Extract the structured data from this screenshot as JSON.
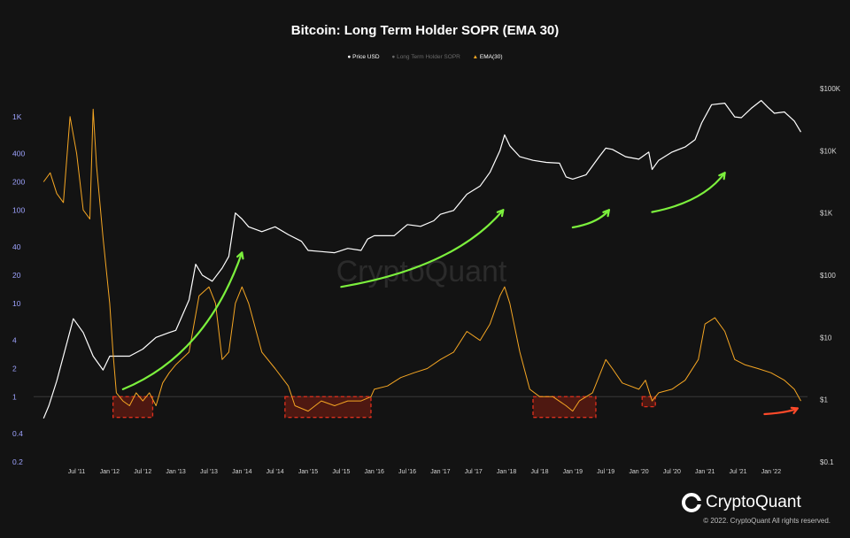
{
  "title": "Bitcoin: Long Term Holder SOPR (EMA 30)",
  "legend": [
    {
      "label": "Price USD",
      "color": "#ffffff",
      "marker": "dot"
    },
    {
      "label": "Long Term Holder SOPR",
      "color": "#6a6a6a",
      "marker": "dot"
    },
    {
      "label": "EMA(30)",
      "color": "#f5a623",
      "marker": "triangle"
    }
  ],
  "watermark": "CryptoQuant",
  "brand": "CryptoQuant",
  "copyright": "© 2022. CryptoQuant All rights reserved.",
  "chart_data": {
    "type": "line",
    "x_tick_labels": [
      "Jul '11",
      "Jan '12",
      "Jul '12",
      "Jan '13",
      "Jul '13",
      "Jan '14",
      "Jul '14",
      "Jan '15",
      "Jul '15",
      "Jan '16",
      "Jul '16",
      "Jan '17",
      "Jul '17",
      "Jan '18",
      "Jul '18",
      "Jan '19",
      "Jul '19",
      "Jan '20",
      "Jul '20",
      "Jan '21",
      "Jul '21",
      "Jan '22"
    ],
    "y_left": {
      "scale": "log",
      "range": [
        0.2,
        2000
      ],
      "tick_labels": [
        "1K",
        "400",
        "200",
        "100",
        "40",
        "20",
        "10",
        "4",
        "2",
        "1",
        "0.4",
        "0.2"
      ],
      "tick_values": [
        1000,
        400,
        200,
        100,
        40,
        20,
        10,
        4,
        2,
        1,
        0.4,
        0.2
      ]
    },
    "y_right": {
      "scale": "log",
      "range": [
        0.1,
        100000
      ],
      "tick_labels": [
        "$100K",
        "$10K",
        "$1K",
        "$100",
        "$10",
        "$1",
        "$0.1"
      ],
      "tick_values": [
        100000,
        10000,
        1000,
        100,
        10,
        1,
        0.1
      ]
    },
    "reference_line": {
      "axis": "left",
      "value": 1
    },
    "series": [
      {
        "name": "Price USD",
        "axis": "right",
        "color": "#ffffff",
        "points": [
          [
            2011.0,
            0.5
          ],
          [
            2011.08,
            0.8
          ],
          [
            2011.2,
            2
          ],
          [
            2011.35,
            8
          ],
          [
            2011.45,
            20
          ],
          [
            2011.6,
            12
          ],
          [
            2011.75,
            5
          ],
          [
            2011.9,
            3
          ],
          [
            2012.0,
            5
          ],
          [
            2012.3,
            5
          ],
          [
            2012.5,
            6.5
          ],
          [
            2012.7,
            10
          ],
          [
            2012.9,
            12
          ],
          [
            2013.0,
            13
          ],
          [
            2013.2,
            40
          ],
          [
            2013.3,
            150
          ],
          [
            2013.4,
            100
          ],
          [
            2013.55,
            80
          ],
          [
            2013.7,
            130
          ],
          [
            2013.8,
            200
          ],
          [
            2013.9,
            1000
          ],
          [
            2014.0,
            800
          ],
          [
            2014.1,
            600
          ],
          [
            2014.3,
            500
          ],
          [
            2014.5,
            600
          ],
          [
            2014.7,
            450
          ],
          [
            2014.9,
            350
          ],
          [
            2015.0,
            250
          ],
          [
            2015.2,
            240
          ],
          [
            2015.4,
            230
          ],
          [
            2015.6,
            270
          ],
          [
            2015.8,
            250
          ],
          [
            2015.9,
            380
          ],
          [
            2016.0,
            430
          ],
          [
            2016.3,
            430
          ],
          [
            2016.5,
            650
          ],
          [
            2016.7,
            610
          ],
          [
            2016.9,
            750
          ],
          [
            2017.0,
            950
          ],
          [
            2017.2,
            1100
          ],
          [
            2017.4,
            2000
          ],
          [
            2017.6,
            2700
          ],
          [
            2017.75,
            4500
          ],
          [
            2017.9,
            10000
          ],
          [
            2017.97,
            18000
          ],
          [
            2018.05,
            12000
          ],
          [
            2018.2,
            8000
          ],
          [
            2018.4,
            7000
          ],
          [
            2018.6,
            6500
          ],
          [
            2018.8,
            6300
          ],
          [
            2018.9,
            3800
          ],
          [
            2019.0,
            3500
          ],
          [
            2019.2,
            4100
          ],
          [
            2019.4,
            8000
          ],
          [
            2019.5,
            11000
          ],
          [
            2019.6,
            10500
          ],
          [
            2019.8,
            8000
          ],
          [
            2020.0,
            7300
          ],
          [
            2020.15,
            9500
          ],
          [
            2020.2,
            5000
          ],
          [
            2020.3,
            7000
          ],
          [
            2020.5,
            9500
          ],
          [
            2020.7,
            11500
          ],
          [
            2020.85,
            15000
          ],
          [
            2020.95,
            28000
          ],
          [
            2021.1,
            55000
          ],
          [
            2021.3,
            58000
          ],
          [
            2021.45,
            35000
          ],
          [
            2021.55,
            34000
          ],
          [
            2021.7,
            48000
          ],
          [
            2021.85,
            64000
          ],
          [
            2021.95,
            50000
          ],
          [
            2022.05,
            40000
          ],
          [
            2022.2,
            42000
          ],
          [
            2022.35,
            30000
          ],
          [
            2022.45,
            20000
          ]
        ]
      },
      {
        "name": "EMA(30)",
        "axis": "left",
        "color": "#f5a623",
        "points": [
          [
            2011.0,
            200
          ],
          [
            2011.1,
            250
          ],
          [
            2011.2,
            150
          ],
          [
            2011.3,
            120
          ],
          [
            2011.4,
            1000
          ],
          [
            2011.5,
            400
          ],
          [
            2011.6,
            100
          ],
          [
            2011.7,
            80
          ],
          [
            2011.75,
            1200
          ],
          [
            2011.8,
            300
          ],
          [
            2011.9,
            50
          ],
          [
            2012.0,
            10
          ],
          [
            2012.05,
            3
          ],
          [
            2012.1,
            1.1
          ],
          [
            2012.2,
            0.9
          ],
          [
            2012.3,
            0.8
          ],
          [
            2012.4,
            1.1
          ],
          [
            2012.5,
            0.9
          ],
          [
            2012.6,
            1.1
          ],
          [
            2012.7,
            0.8
          ],
          [
            2012.8,
            1.4
          ],
          [
            2012.9,
            1.8
          ],
          [
            2013.0,
            2.2
          ],
          [
            2013.2,
            3
          ],
          [
            2013.35,
            12
          ],
          [
            2013.5,
            15
          ],
          [
            2013.6,
            10
          ],
          [
            2013.7,
            2.5
          ],
          [
            2013.8,
            3
          ],
          [
            2013.9,
            10
          ],
          [
            2014.0,
            15
          ],
          [
            2014.1,
            10
          ],
          [
            2014.3,
            3
          ],
          [
            2014.5,
            2
          ],
          [
            2014.7,
            1.3
          ],
          [
            2014.8,
            0.8
          ],
          [
            2015.0,
            0.7
          ],
          [
            2015.2,
            0.9
          ],
          [
            2015.4,
            0.8
          ],
          [
            2015.6,
            0.9
          ],
          [
            2015.8,
            0.9
          ],
          [
            2015.95,
            1
          ],
          [
            2016.0,
            1.2
          ],
          [
            2016.2,
            1.3
          ],
          [
            2016.4,
            1.6
          ],
          [
            2016.6,
            1.8
          ],
          [
            2016.8,
            2
          ],
          [
            2017.0,
            2.5
          ],
          [
            2017.2,
            3
          ],
          [
            2017.4,
            5
          ],
          [
            2017.6,
            4
          ],
          [
            2017.75,
            6
          ],
          [
            2017.9,
            12
          ],
          [
            2017.97,
            15
          ],
          [
            2018.05,
            10
          ],
          [
            2018.2,
            3
          ],
          [
            2018.35,
            1.2
          ],
          [
            2018.5,
            1
          ],
          [
            2018.7,
            1
          ],
          [
            2018.9,
            0.8
          ],
          [
            2019.0,
            0.7
          ],
          [
            2019.1,
            0.9
          ],
          [
            2019.3,
            1.1
          ],
          [
            2019.5,
            2.5
          ],
          [
            2019.6,
            2
          ],
          [
            2019.75,
            1.4
          ],
          [
            2020.0,
            1.2
          ],
          [
            2020.1,
            1.5
          ],
          [
            2020.2,
            0.9
          ],
          [
            2020.3,
            1.1
          ],
          [
            2020.5,
            1.2
          ],
          [
            2020.7,
            1.5
          ],
          [
            2020.9,
            2.5
          ],
          [
            2021.0,
            6
          ],
          [
            2021.15,
            7
          ],
          [
            2021.3,
            5
          ],
          [
            2021.45,
            2.5
          ],
          [
            2021.6,
            2.2
          ],
          [
            2021.8,
            2
          ],
          [
            2022.0,
            1.8
          ],
          [
            2022.2,
            1.5
          ],
          [
            2022.35,
            1.2
          ],
          [
            2022.45,
            0.9
          ]
        ]
      }
    ],
    "highlighted_regions": [
      {
        "x": [
          2012.05,
          2012.65
        ],
        "y": [
          0.6,
          1.0
        ],
        "axis": "left"
      },
      {
        "x": [
          2014.65,
          2015.95
        ],
        "y": [
          0.6,
          1.0
        ],
        "axis": "left"
      },
      {
        "x": [
          2018.4,
          2019.35
        ],
        "y": [
          0.6,
          1.0
        ],
        "axis": "left"
      },
      {
        "x": [
          2020.05,
          2020.25
        ],
        "y": [
          0.78,
          1.0
        ],
        "axis": "left"
      }
    ],
    "annotation_arrows": [
      {
        "color": "#7cf03d",
        "from": [
          2012.2,
          1.2
        ],
        "to": [
          2014.0,
          35
        ],
        "axis": "left"
      },
      {
        "color": "#7cf03d",
        "from": [
          2015.5,
          15
        ],
        "to": [
          2017.95,
          100
        ],
        "axis": "left"
      },
      {
        "color": "#7cf03d",
        "from": [
          2019.0,
          65
        ],
        "to": [
          2019.55,
          100
        ],
        "axis": "left"
      },
      {
        "color": "#7cf03d",
        "from": [
          2020.2,
          95
        ],
        "to": [
          2021.3,
          250
        ],
        "axis": "left"
      },
      {
        "color": "#ff4a2a",
        "from": [
          2021.9,
          0.65
        ],
        "to": [
          2022.4,
          0.75
        ],
        "axis": "left"
      }
    ]
  }
}
